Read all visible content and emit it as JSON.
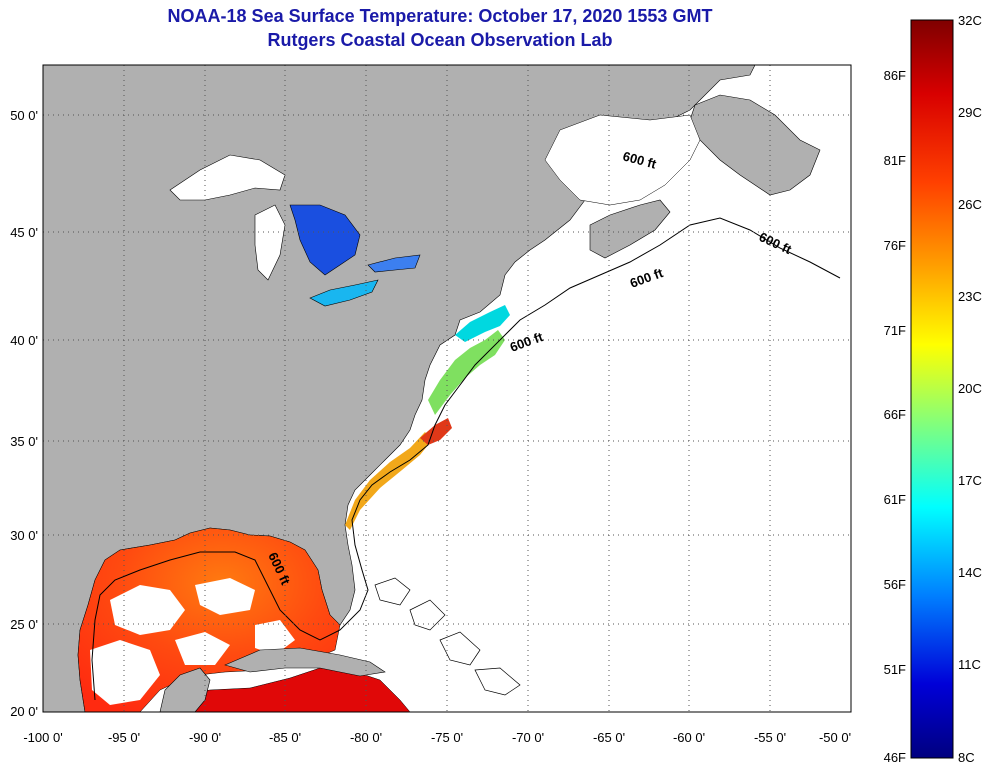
{
  "header": {
    "title_line1": "NOAA-18 Sea Surface Temperature:  October 17, 2020 1553 GMT",
    "title_line2": "Rutgers Coastal Ocean Observation Lab"
  },
  "map": {
    "region": "US East Coast and Gulf of Mexico",
    "land_color": "#b0b0b0",
    "cloud_color": "#ffffff",
    "lon_labels": [
      "-100 0'",
      "-95 0'",
      "-90 0'",
      "-85 0'",
      "-80 0'",
      "-75 0'",
      "-70 0'",
      "-65 0'",
      "-60 0'",
      "-55 0'",
      "-50 0'"
    ],
    "lat_labels": [
      "50 0'",
      "45 0'",
      "40 0'",
      "35 0'",
      "30 0'",
      "25 0'",
      "20 0'"
    ],
    "contour_labels": [
      "600 ft",
      "600 ft",
      "600 ft",
      "600 ft",
      "600 ft"
    ]
  },
  "colorbar": {
    "celsius_labels": [
      "32C",
      "29C",
      "26C",
      "23C",
      "20C",
      "17C",
      "14C",
      "11C",
      "8C"
    ],
    "fahrenheit_labels": [
      "86F",
      "81F",
      "76F",
      "71F",
      "66F",
      "61F",
      "56F",
      "51F",
      "46F"
    ],
    "gradient": [
      "#7f0000",
      "#d80000",
      "#ff4000",
      "#ff9c00",
      "#ffff00",
      "#7fff7f",
      "#00ffff",
      "#007fff",
      "#0000d8",
      "#00007f"
    ]
  }
}
